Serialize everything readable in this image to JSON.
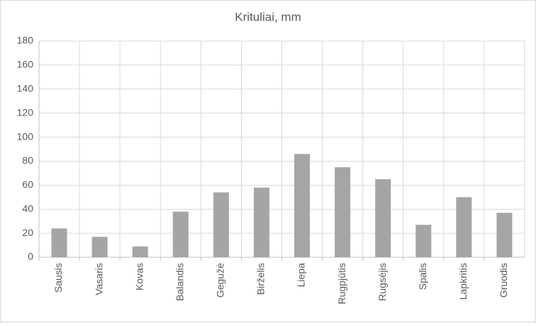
{
  "chart_data": {
    "type": "bar",
    "title": "Krituliai, mm",
    "categories": [
      "Sausis",
      "Vasaris",
      "Kovas",
      "Balandis",
      "Gegužė",
      "Birželis",
      "Liepa",
      "Rugpjūtis",
      "Rugsėjis",
      "Spalis",
      "Lapkritis",
      "Gruodis"
    ],
    "values": [
      24,
      17,
      9,
      38,
      54,
      58,
      86,
      75,
      65,
      27,
      50,
      37
    ],
    "color": "#a5a5a5",
    "ylim": [
      0,
      180
    ],
    "yticks": [
      0,
      20,
      40,
      60,
      80,
      100,
      120,
      140,
      160,
      180
    ],
    "grid": true
  }
}
